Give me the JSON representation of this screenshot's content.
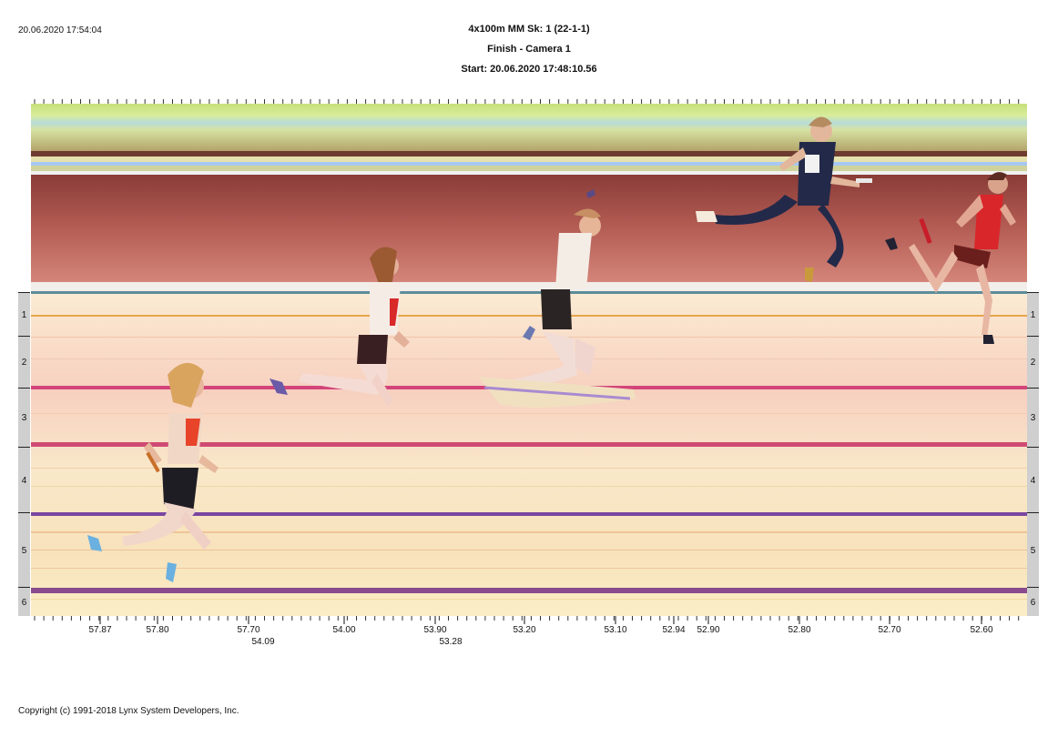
{
  "header": {
    "timestamp": "20.06.2020 17:54:04",
    "event": "4x100m MM   Sk: 1 (22-1-1)",
    "camera": "Finish - Camera 1",
    "start": "Start: 20.06.2020 17:48:10.56"
  },
  "lanes": [
    "1",
    "2",
    "3",
    "4",
    "5",
    "6"
  ],
  "time_axis": {
    "main_ticks": [
      "57.87",
      "57.80",
      "57.70",
      "54.00",
      "53.90",
      "53.20",
      "53.10",
      "52.94",
      "52.90",
      "52.80",
      "52.70",
      "52.60"
    ],
    "second_row": [
      "54.09",
      "53.28"
    ]
  },
  "footer": {
    "copyright": "Copyright (c) 1991-2018 Lynx System Developers, Inc."
  },
  "colors": {
    "background": "#ffffff",
    "lane_panel": "#cfcfcf",
    "track_base": "#f6e3c6",
    "lane_line_magenta": "#d3457a",
    "lane_line_purple": "#7a46a2"
  }
}
